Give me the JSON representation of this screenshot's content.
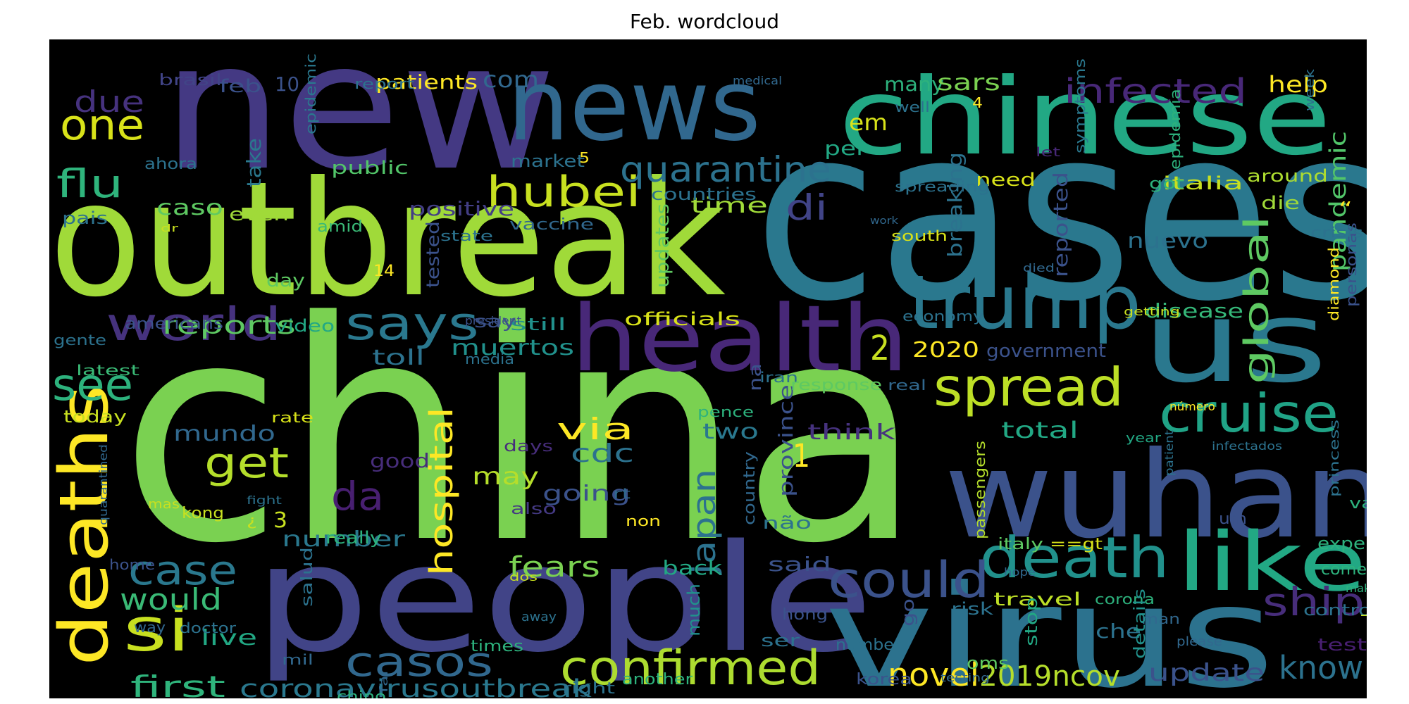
{
  "chart_data": {
    "type": "wordcloud",
    "title": "Feb. wordcloud",
    "background": "#000000",
    "colormap": "viridis",
    "words": [
      {
        "text": "china",
        "color": "#7ad151"
      },
      {
        "text": "cases",
        "color": "#2a788e"
      },
      {
        "text": "new",
        "color": "#443983"
      },
      {
        "text": "outbreak",
        "color": "#a0da39"
      },
      {
        "text": "people",
        "color": "#414487"
      },
      {
        "text": "virus",
        "color": "#2c728e"
      },
      {
        "text": "chinese",
        "color": "#22a884"
      },
      {
        "text": "news",
        "color": "#31688e"
      },
      {
        "text": "us",
        "color": "#2a788e"
      },
      {
        "text": "wuhan",
        "color": "#3b528b"
      },
      {
        "text": "health",
        "color": "#482878"
      },
      {
        "text": "trump",
        "color": "#2a788e"
      },
      {
        "text": "deaths",
        "color": "#fde725"
      },
      {
        "text": "like",
        "color": "#22a884"
      },
      {
        "text": "death",
        "color": "#21918c"
      },
      {
        "text": "spread",
        "color": "#bddf26"
      },
      {
        "text": "cruise",
        "color": "#20a386"
      },
      {
        "text": "could",
        "color": "#3b528b"
      },
      {
        "text": "confirmed",
        "color": "#addc30"
      },
      {
        "text": "casos",
        "color": "#31688e"
      },
      {
        "text": "world",
        "color": "#46327e"
      },
      {
        "text": "says",
        "color": "#2a788e"
      },
      {
        "text": "hubei",
        "color": "#c8e020"
      },
      {
        "text": "si",
        "color": "#c8e020"
      },
      {
        "text": "get",
        "color": "#b5de2b"
      },
      {
        "text": "see",
        "color": "#2db27d"
      },
      {
        "text": "case",
        "color": "#2a788e"
      },
      {
        "text": "one",
        "color": "#d8e219"
      },
      {
        "text": "flu",
        "color": "#2fb47c"
      },
      {
        "text": "quarantine",
        "color": "#2c728e"
      },
      {
        "text": "infected",
        "color": "#482878"
      },
      {
        "text": "global",
        "color": "#5ec962"
      },
      {
        "text": "japan",
        "color": "#2c728e"
      },
      {
        "text": "hospital",
        "color": "#fde725"
      },
      {
        "text": "ship",
        "color": "#472d7b"
      },
      {
        "text": "novel",
        "color": "#fde725"
      },
      {
        "text": "2019ncov",
        "color": "#b5de2b"
      },
      {
        "text": "know",
        "color": "#2c728e"
      },
      {
        "text": "first",
        "color": "#2fb47c"
      },
      {
        "text": "coronavirusoutbreak",
        "color": "#2a788e"
      },
      {
        "text": "da",
        "color": "#481f71"
      },
      {
        "text": "di",
        "color": "#414487"
      },
      {
        "text": "via",
        "color": "#fde725"
      },
      {
        "text": "fears",
        "color": "#7ad151"
      },
      {
        "text": "would",
        "color": "#3aba76"
      },
      {
        "text": "reports",
        "color": "#5ec962"
      },
      {
        "text": "pandemic",
        "color": "#52c569"
      },
      {
        "text": "due",
        "color": "#46327e"
      },
      {
        "text": "update",
        "color": "#3b528b"
      },
      {
        "text": "may",
        "color": "#b5de2b"
      },
      {
        "text": "cdc",
        "color": "#2c728e"
      },
      {
        "text": "muertos",
        "color": "#21918c"
      },
      {
        "text": "number",
        "color": "#2a788e"
      },
      {
        "text": "mundo",
        "color": "#31688e"
      },
      {
        "text": "going",
        "color": "#3b528b"
      },
      {
        "text": "time",
        "color": "#a0da39"
      },
      {
        "text": "province",
        "color": "#3b528b"
      },
      {
        "text": "breaking",
        "color": "#2c728e"
      },
      {
        "text": "reported",
        "color": "#3b528b"
      },
      {
        "text": "two",
        "color": "#2a788e"
      },
      {
        "text": "think",
        "color": "#46327e"
      },
      {
        "text": "total",
        "color": "#22a884"
      },
      {
        "text": "2020",
        "color": "#fde725"
      },
      {
        "text": "government",
        "color": "#3b528b"
      },
      {
        "text": "nuevo",
        "color": "#2c728e"
      },
      {
        "text": "disease",
        "color": "#35b779"
      },
      {
        "text": "officials",
        "color": "#d8e219"
      },
      {
        "text": "live",
        "color": "#22a884"
      },
      {
        "text": "toll",
        "color": "#2c728e"
      },
      {
        "text": "positive",
        "color": "#433e85"
      },
      {
        "text": "updates",
        "color": "#5ec962"
      },
      {
        "text": "tested",
        "color": "#3b528b"
      },
      {
        "text": "back",
        "color": "#22a884"
      },
      {
        "text": "said",
        "color": "#3b528b"
      },
      {
        "text": "travel",
        "color": "#bddf26"
      },
      {
        "text": "em",
        "color": "#d8e219"
      },
      {
        "text": "many",
        "color": "#2db27d"
      },
      {
        "text": "sars",
        "color": "#7ad151"
      },
      {
        "text": "help",
        "color": "#fde725"
      },
      {
        "text": "per",
        "color": "#22a884"
      },
      {
        "text": "need",
        "color": "#d8e219"
      },
      {
        "text": "italia",
        "color": "#c8e020"
      },
      {
        "text": "die",
        "color": "#a0da39"
      },
      {
        "text": "around",
        "color": "#addc30"
      },
      {
        "text": "patients",
        "color": "#fde725"
      },
      {
        "text": "com",
        "color": "#31688e"
      },
      {
        "text": "market",
        "color": "#2c728e"
      },
      {
        "text": "public",
        "color": "#52c569"
      },
      {
        "text": "countries",
        "color": "#2c728e"
      },
      {
        "text": "vaccine",
        "color": "#31688e"
      },
      {
        "text": "caso",
        "color": "#5ec962"
      },
      {
        "text": "even",
        "color": "#a0da39"
      },
      {
        "text": "take",
        "color": "#2a788e"
      },
      {
        "text": "feb",
        "color": "#3b528b"
      },
      {
        "text": "brasil",
        "color": "#414487"
      },
      {
        "text": "ahora",
        "color": "#2c728e"
      },
      {
        "text": "pais",
        "color": "#2c728e"
      },
      {
        "text": "amid",
        "color": "#3aba76"
      },
      {
        "text": "day",
        "color": "#5ec962"
      },
      {
        "text": "say",
        "color": "#3b528b"
      },
      {
        "text": "still",
        "color": "#21918c"
      },
      {
        "text": "video",
        "color": "#22a884"
      },
      {
        "text": "state",
        "color": "#2c728e"
      },
      {
        "text": "americans",
        "color": "#3b528b"
      },
      {
        "text": "gente",
        "color": "#2c728e"
      },
      {
        "text": "latest",
        "color": "#3aba76"
      },
      {
        "text": "today",
        "color": "#c8e020"
      },
      {
        "text": "rate",
        "color": "#d8e219"
      },
      {
        "text": "good",
        "color": "#472d7b"
      },
      {
        "text": "days",
        "color": "#472d7b"
      },
      {
        "text": "also",
        "color": "#443983"
      },
      {
        "text": "non",
        "color": "#fde725"
      },
      {
        "text": "não",
        "color": "#2c728e"
      },
      {
        "text": "country",
        "color": "#31688e"
      },
      {
        "text": "rt",
        "color": "#31688e"
      },
      {
        "text": "na",
        "color": "#3b528b"
      },
      {
        "text": "pence",
        "color": "#2db27d"
      },
      {
        "text": "iran",
        "color": "#2c728e"
      },
      {
        "text": "response",
        "color": "#5ec962"
      },
      {
        "text": "real",
        "color": "#31688e"
      },
      {
        "text": "economy",
        "color": "#2c728e"
      },
      {
        "text": "south",
        "color": "#d8e219"
      },
      {
        "text": "diamond",
        "color": "#fde725"
      },
      {
        "text": "personas",
        "color": "#3b528b"
      },
      {
        "text": "crisis",
        "color": "#2c728e"
      },
      {
        "text": "week",
        "color": "#2c728e"
      },
      {
        "text": "symptoms",
        "color": "#2a788e"
      },
      {
        "text": "epidemia",
        "color": "#2db27d"
      },
      {
        "text": "got",
        "color": "#2db27d"
      },
      {
        "text": "spreading",
        "color": "#2c728e"
      },
      {
        "text": "well",
        "color": "#2c728e"
      },
      {
        "text": "let",
        "color": "#482878"
      },
      {
        "text": "medical",
        "color": "#31688e"
      },
      {
        "text": "report",
        "color": "#2c728e"
      },
      {
        "text": "epidemic",
        "color": "#2a788e"
      },
      {
        "text": "work",
        "color": "#31688e"
      },
      {
        "text": "died",
        "color": "#31688e"
      },
      {
        "text": "getting",
        "color": "#c8e020"
      },
      {
        "text": "president",
        "color": "#3b528b"
      },
      {
        "text": "número",
        "color": "#fde725"
      },
      {
        "text": "year",
        "color": "#22a884"
      },
      {
        "text": "infectados",
        "color": "#2c728e"
      },
      {
        "text": "patient",
        "color": "#2c728e"
      },
      {
        "text": "princess",
        "color": "#2c728e"
      },
      {
        "text": "va",
        "color": "#2db27d"
      },
      {
        "text": "experts",
        "color": "#2db27d"
      },
      {
        "text": "um",
        "color": "#3b528b"
      },
      {
        "text": "italy",
        "color": "#5ec962"
      },
      {
        "text": "==gt",
        "color": "#d8e219"
      },
      {
        "text": "passengers",
        "color": "#b5de2b"
      },
      {
        "text": "hope",
        "color": "#31688e"
      },
      {
        "text": "corona",
        "color": "#2db27d"
      },
      {
        "text": "risk",
        "color": "#2c728e"
      },
      {
        "text": "oms",
        "color": "#5ec962"
      },
      {
        "text": "go",
        "color": "#3b528b"
      },
      {
        "text": "stop",
        "color": "#22a884"
      },
      {
        "text": "che",
        "color": "#2c728e"
      },
      {
        "text": "man",
        "color": "#31688e"
      },
      {
        "text": "details",
        "color": "#21918c"
      },
      {
        "text": "control",
        "color": "#2c728e"
      },
      {
        "text": "come",
        "color": "#2db27d"
      },
      {
        "text": "make",
        "color": "#2db27d"
      },
      {
        "text": "please",
        "color": "#31688e"
      },
      {
        "text": "numbers",
        "color": "#2c728e"
      },
      {
        "text": "ser",
        "color": "#2c728e"
      },
      {
        "text": "hong",
        "color": "#3b528b"
      },
      {
        "text": "much",
        "color": "#21918c"
      },
      {
        "text": "another",
        "color": "#2db27d"
      },
      {
        "text": "korea",
        "color": "#3b528b"
      },
      {
        "text": "testing",
        "color": "#31688e"
      },
      {
        "text": "test",
        "color": "#481f71"
      },
      {
        "text": "away",
        "color": "#2c728e"
      },
      {
        "text": "dos",
        "color": "#c8e020"
      },
      {
        "text": "right",
        "color": "#2c728e"
      },
      {
        "text": "times",
        "color": "#2db27d"
      },
      {
        "text": "chino",
        "color": "#2db27d"
      },
      {
        "text": "far",
        "color": "#31688e"
      },
      {
        "text": "mil",
        "color": "#31688e"
      },
      {
        "text": "impact",
        "color": "#2c728e"
      },
      {
        "text": "doctor",
        "color": "#2c728e"
      },
      {
        "text": "way",
        "color": "#31688e"
      },
      {
        "text": "home",
        "color": "#3b528b"
      },
      {
        "text": "mas",
        "color": "#c8e020"
      },
      {
        "text": "quarantined",
        "color": "#31688e"
      },
      {
        "text": "kong",
        "color": "#c8e020"
      },
      {
        "text": "fight",
        "color": "#2c728e"
      },
      {
        "text": "really",
        "color": "#2db27d"
      },
      {
        "text": "salud",
        "color": "#2c728e"
      },
      {
        "text": "dr",
        "color": "#c8e020"
      },
      {
        "text": "media",
        "color": "#2c728e"
      },
      {
        "text": "10",
        "color": "#3b528b"
      },
      {
        "text": "14",
        "color": "#fde725"
      },
      {
        "text": "1",
        "color": "#fde725"
      },
      {
        "text": "2",
        "color": "#c8e020"
      },
      {
        "text": "3",
        "color": "#c8e020"
      },
      {
        "text": "4",
        "color": "#fde725"
      },
      {
        "text": "5",
        "color": "#fde725"
      },
      {
        "text": "¿",
        "color": "#c8e020"
      },
      {
        "text": "-",
        "color": "#c8e020"
      },
      {
        "text": "“",
        "color": "#fde725"
      }
    ]
  }
}
